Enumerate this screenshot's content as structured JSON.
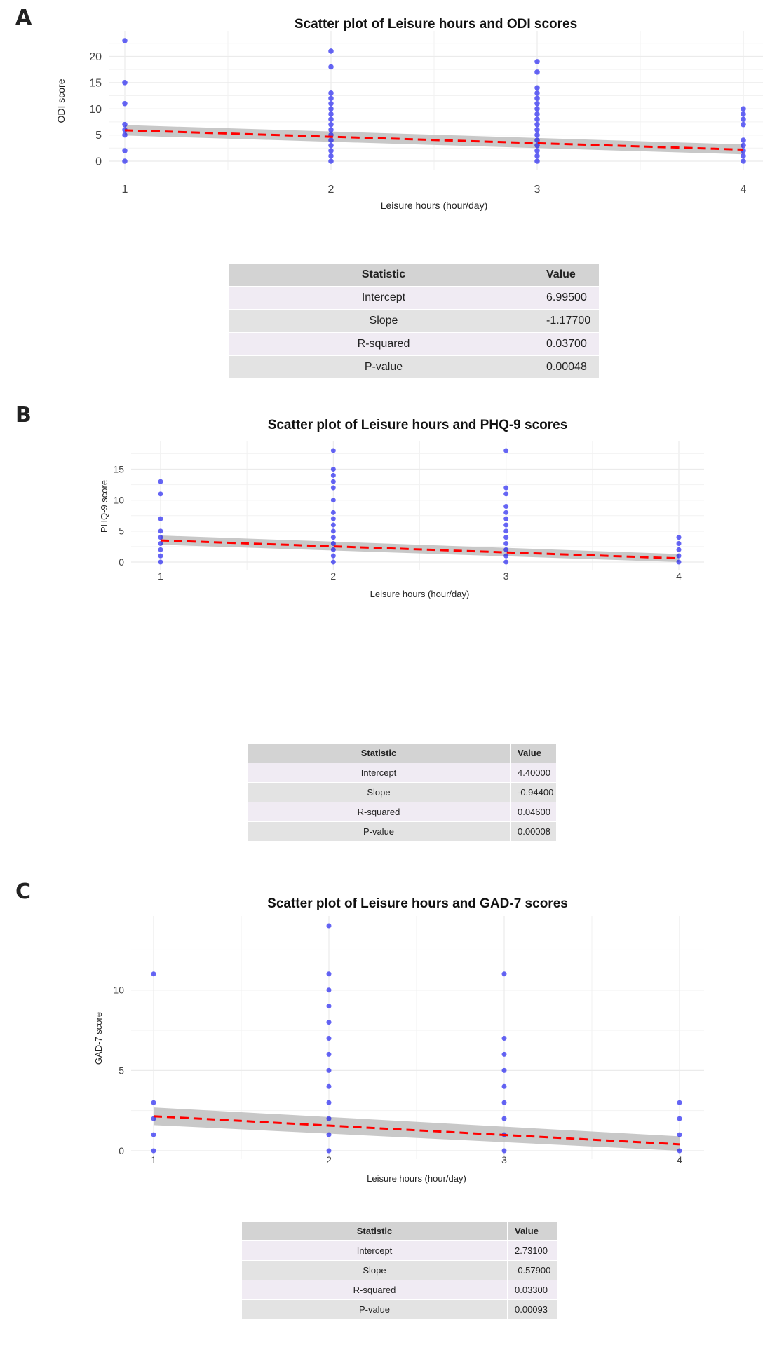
{
  "panels": [
    {
      "letter": "A",
      "table": {
        "headers": [
          "Statistic",
          "Value"
        ],
        "rows": [
          [
            "Intercept",
            "6.99500"
          ],
          [
            "Slope",
            "-1.17700"
          ],
          [
            "R-squared",
            "0.03700"
          ],
          [
            "P-value",
            "0.00048"
          ]
        ]
      }
    },
    {
      "letter": "B",
      "table": {
        "headers": [
          "Statistic",
          "Value"
        ],
        "rows": [
          [
            "Intercept",
            "4.40000"
          ],
          [
            "Slope",
            "-0.94400"
          ],
          [
            "R-squared",
            "0.04600"
          ],
          [
            "P-value",
            "0.00008"
          ]
        ]
      }
    },
    {
      "letter": "C",
      "table": {
        "headers": [
          "Statistic",
          "Value"
        ],
        "rows": [
          [
            "Intercept",
            "2.73100"
          ],
          [
            "Slope",
            "-0.57900"
          ],
          [
            "R-squared",
            "0.03300"
          ],
          [
            "P-value",
            "0.00093"
          ]
        ]
      }
    }
  ],
  "chart_data": [
    {
      "type": "scatter",
      "title": "Scatter plot of Leisure hours and ODI scores",
      "xlabel": "Leisure hours (hour/day)",
      "ylabel": "ODI score",
      "xlim": [
        1,
        4
      ],
      "ylim": [
        0,
        23
      ],
      "xticks": [
        1,
        2,
        3,
        4
      ],
      "yticks": [
        0,
        5,
        10,
        15,
        20
      ],
      "grid": true,
      "point_color": "#0000ee",
      "points": [
        {
          "x": 1,
          "y": 0
        },
        {
          "x": 1,
          "y": 2
        },
        {
          "x": 1,
          "y": 5
        },
        {
          "x": 1,
          "y": 6
        },
        {
          "x": 1,
          "y": 7
        },
        {
          "x": 1,
          "y": 11
        },
        {
          "x": 1,
          "y": 15
        },
        {
          "x": 1,
          "y": 23
        },
        {
          "x": 2,
          "y": 0
        },
        {
          "x": 2,
          "y": 1
        },
        {
          "x": 2,
          "y": 2
        },
        {
          "x": 2,
          "y": 3
        },
        {
          "x": 2,
          "y": 4
        },
        {
          "x": 2,
          "y": 5
        },
        {
          "x": 2,
          "y": 6
        },
        {
          "x": 2,
          "y": 7
        },
        {
          "x": 2,
          "y": 8
        },
        {
          "x": 2,
          "y": 9
        },
        {
          "x": 2,
          "y": 10
        },
        {
          "x": 2,
          "y": 11
        },
        {
          "x": 2,
          "y": 12
        },
        {
          "x": 2,
          "y": 13
        },
        {
          "x": 2,
          "y": 18
        },
        {
          "x": 2,
          "y": 21
        },
        {
          "x": 3,
          "y": 0
        },
        {
          "x": 3,
          "y": 1
        },
        {
          "x": 3,
          "y": 2
        },
        {
          "x": 3,
          "y": 3
        },
        {
          "x": 3,
          "y": 4
        },
        {
          "x": 3,
          "y": 5
        },
        {
          "x": 3,
          "y": 6
        },
        {
          "x": 3,
          "y": 7
        },
        {
          "x": 3,
          "y": 8
        },
        {
          "x": 3,
          "y": 9
        },
        {
          "x": 3,
          "y": 10
        },
        {
          "x": 3,
          "y": 11
        },
        {
          "x": 3,
          "y": 12
        },
        {
          "x": 3,
          "y": 13
        },
        {
          "x": 3,
          "y": 14
        },
        {
          "x": 3,
          "y": 17
        },
        {
          "x": 3,
          "y": 19
        },
        {
          "x": 4,
          "y": 0
        },
        {
          "x": 4,
          "y": 1
        },
        {
          "x": 4,
          "y": 2
        },
        {
          "x": 4,
          "y": 3
        },
        {
          "x": 4,
          "y": 4
        },
        {
          "x": 4,
          "y": 7
        },
        {
          "x": 4,
          "y": 8
        },
        {
          "x": 4,
          "y": 9
        },
        {
          "x": 4,
          "y": 10
        }
      ],
      "trend": {
        "color": "#ff0000",
        "style": "dashed",
        "x": [
          1,
          4
        ],
        "y": [
          5.9,
          2.2
        ],
        "ci_low": [
          4.9,
          1.3
        ],
        "ci_high": [
          6.9,
          3.2
        ],
        "ci_color": "#bebebe"
      }
    },
    {
      "type": "scatter",
      "title": "Scatter plot of Leisure hours and PHQ-9 scores",
      "xlabel": "Leisure hours (hour/day)",
      "ylabel": "PHQ-9 score",
      "xlim": [
        1,
        4
      ],
      "ylim": [
        0,
        18
      ],
      "xticks": [
        1,
        2,
        3,
        4
      ],
      "yticks": [
        0,
        5,
        10,
        15
      ],
      "grid": true,
      "point_color": "#0000ee",
      "points": [
        {
          "x": 1,
          "y": 0
        },
        {
          "x": 1,
          "y": 1
        },
        {
          "x": 1,
          "y": 2
        },
        {
          "x": 1,
          "y": 3
        },
        {
          "x": 1,
          "y": 4
        },
        {
          "x": 1,
          "y": 5
        },
        {
          "x": 1,
          "y": 7
        },
        {
          "x": 1,
          "y": 11
        },
        {
          "x": 1,
          "y": 13
        },
        {
          "x": 2,
          "y": 0
        },
        {
          "x": 2,
          "y": 1
        },
        {
          "x": 2,
          "y": 2
        },
        {
          "x": 2,
          "y": 3
        },
        {
          "x": 2,
          "y": 4
        },
        {
          "x": 2,
          "y": 5
        },
        {
          "x": 2,
          "y": 6
        },
        {
          "x": 2,
          "y": 7
        },
        {
          "x": 2,
          "y": 8
        },
        {
          "x": 2,
          "y": 10
        },
        {
          "x": 2,
          "y": 12
        },
        {
          "x": 2,
          "y": 13
        },
        {
          "x": 2,
          "y": 14
        },
        {
          "x": 2,
          "y": 15
        },
        {
          "x": 2,
          "y": 18
        },
        {
          "x": 3,
          "y": 0
        },
        {
          "x": 3,
          "y": 1
        },
        {
          "x": 3,
          "y": 2
        },
        {
          "x": 3,
          "y": 3
        },
        {
          "x": 3,
          "y": 4
        },
        {
          "x": 3,
          "y": 5
        },
        {
          "x": 3,
          "y": 6
        },
        {
          "x": 3,
          "y": 7
        },
        {
          "x": 3,
          "y": 8
        },
        {
          "x": 3,
          "y": 9
        },
        {
          "x": 3,
          "y": 11
        },
        {
          "x": 3,
          "y": 12
        },
        {
          "x": 3,
          "y": 18
        },
        {
          "x": 4,
          "y": 0
        },
        {
          "x": 4,
          "y": 1
        },
        {
          "x": 4,
          "y": 2
        },
        {
          "x": 4,
          "y": 3
        },
        {
          "x": 4,
          "y": 4
        }
      ],
      "trend": {
        "color": "#ff0000",
        "style": "dashed",
        "x": [
          1,
          4
        ],
        "y": [
          3.5,
          0.6
        ],
        "ci_low": [
          2.8,
          0.0
        ],
        "ci_high": [
          4.3,
          1.3
        ],
        "ci_color": "#bebebe"
      }
    },
    {
      "type": "scatter",
      "title": "Scatter plot of Leisure hours and GAD-7 scores",
      "xlabel": "Leisure hours (hour/day)",
      "ylabel": "GAD-7 score",
      "xlim": [
        1,
        4
      ],
      "ylim": [
        0,
        14
      ],
      "xticks": [
        1,
        2,
        3,
        4
      ],
      "yticks": [
        0,
        5,
        10
      ],
      "grid": true,
      "point_color": "#0000ee",
      "points": [
        {
          "x": 1,
          "y": 0
        },
        {
          "x": 1,
          "y": 1
        },
        {
          "x": 1,
          "y": 2
        },
        {
          "x": 1,
          "y": 3
        },
        {
          "x": 1,
          "y": 11
        },
        {
          "x": 2,
          "y": 0
        },
        {
          "x": 2,
          "y": 1
        },
        {
          "x": 2,
          "y": 2
        },
        {
          "x": 2,
          "y": 3
        },
        {
          "x": 2,
          "y": 4
        },
        {
          "x": 2,
          "y": 5
        },
        {
          "x": 2,
          "y": 6
        },
        {
          "x": 2,
          "y": 7
        },
        {
          "x": 2,
          "y": 8
        },
        {
          "x": 2,
          "y": 9
        },
        {
          "x": 2,
          "y": 10
        },
        {
          "x": 2,
          "y": 11
        },
        {
          "x": 2,
          "y": 14
        },
        {
          "x": 3,
          "y": 0
        },
        {
          "x": 3,
          "y": 1
        },
        {
          "x": 3,
          "y": 2
        },
        {
          "x": 3,
          "y": 3
        },
        {
          "x": 3,
          "y": 4
        },
        {
          "x": 3,
          "y": 5
        },
        {
          "x": 3,
          "y": 6
        },
        {
          "x": 3,
          "y": 7
        },
        {
          "x": 3,
          "y": 11
        },
        {
          "x": 4,
          "y": 0
        },
        {
          "x": 4,
          "y": 1
        },
        {
          "x": 4,
          "y": 2
        },
        {
          "x": 4,
          "y": 3
        }
      ],
      "trend": {
        "color": "#ff0000",
        "style": "dashed",
        "x": [
          1,
          4
        ],
        "y": [
          2.15,
          0.4
        ],
        "ci_low": [
          1.6,
          0.0
        ],
        "ci_high": [
          2.7,
          0.9
        ],
        "ci_color": "#bebebe"
      }
    }
  ]
}
